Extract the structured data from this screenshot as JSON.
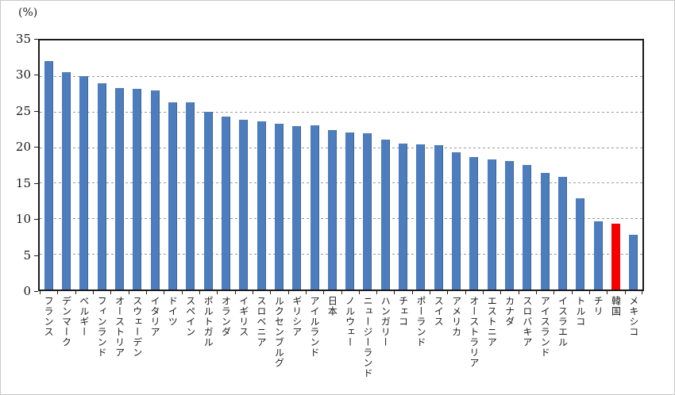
{
  "chart_data": {
    "type": "bar",
    "title": "",
    "xlabel": "",
    "ylabel": "(%)",
    "ylim": [
      0,
      35
    ],
    "yticks": [
      0,
      5,
      10,
      15,
      20,
      25,
      30,
      35
    ],
    "gridlines": {
      "style": "dashed",
      "at": [
        5,
        10,
        15,
        20,
        25,
        30
      ]
    },
    "legend": "none",
    "bar_color": "#4E7DBE",
    "bar_border_color": "#3A6496",
    "highlight_category": "韓国",
    "highlight_color": "#F50000",
    "categories": [
      "フランス",
      "デンマーク",
      "ベルギー",
      "フィンランド",
      "オーストリア",
      "スウェーデン",
      "イタリア",
      "ドイツ",
      "スペイン",
      "ポルトガル",
      "オランダ",
      "イギリス",
      "スロベニア",
      "ルクセンブルグ",
      "ギリシア",
      "アイルランド",
      "日本",
      "ノルウェー",
      "ニュージーランド",
      "ハンガリー",
      "チェコ",
      "ポーランド",
      "スイス",
      "アメリカ",
      "オーストラリア",
      "エストニア",
      "カナダ",
      "スロバキア",
      "アイスランド",
      "イスラエル",
      "トルコ",
      "チリ",
      "韓国",
      "メキシコ"
    ],
    "values": [
      32.1,
      30.5,
      30.0,
      29.0,
      28.3,
      28.2,
      28.0,
      26.3,
      26.3,
      25.0,
      24.3,
      23.8,
      23.6,
      23.3,
      23.0,
      23.1,
      22.4,
      22.1,
      22.0,
      21.1,
      20.5,
      20.4,
      20.3,
      19.3,
      18.6,
      18.3,
      18.1,
      17.5,
      16.4,
      15.8,
      12.8,
      9.6,
      9.3,
      7.7
    ]
  }
}
